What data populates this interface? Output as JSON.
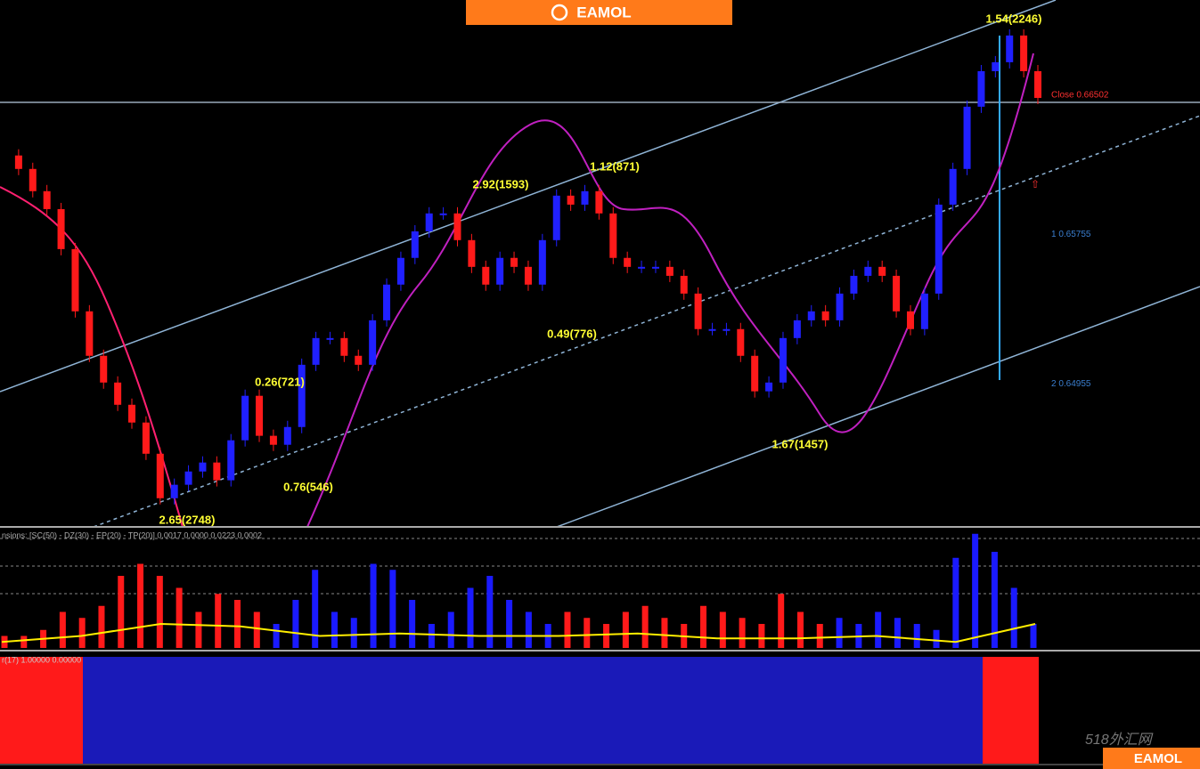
{
  "chart_data": {
    "type": "candlestick",
    "logo": "EAMOL",
    "values": [
      0.66178,
      0.66106,
      0.65987,
      0.65891,
      0.65677,
      0.65344,
      0.65106,
      0.64963,
      0.64844,
      0.64749,
      0.64582,
      0.64344,
      0.64416,
      0.64487,
      0.64535,
      0.6444,
      0.64654,
      0.64892,
      0.64678,
      0.6463,
      0.64725,
      0.65058,
      0.65201,
      0.65201,
      0.65106,
      0.65058,
      0.65296,
      0.65487,
      0.6563,
      0.65772,
      0.65868,
      0.65868,
      0.65725,
      0.65582,
      0.65487,
      0.6563,
      0.65582,
      0.65487,
      0.65725,
      0.65963,
      0.65915,
      0.65987,
      0.65868,
      0.6563,
      0.65582,
      0.65582,
      0.65582,
      0.65534,
      0.65439,
      0.65249,
      0.65249,
      0.65249,
      0.65106,
      0.64916,
      0.64963,
      0.65201,
      0.65296,
      0.65344,
      0.65296,
      0.65439,
      0.65534,
      0.65582,
      0.65534,
      0.65344,
      0.65249,
      0.65439,
      0.65915,
      0.66106,
      0.66439,
      0.66629,
      0.66677,
      0.6682,
      0.66629,
      0.66486
    ],
    "ylim": [
      0.642,
      0.6701
    ],
    "levels": [
      {
        "value": 0.66502,
        "label": "Close 0.66502"
      },
      {
        "value": 0.65755,
        "label": "1 0.65755"
      },
      {
        "value": 0.64955,
        "label": "2 0.64955"
      }
    ],
    "annotations": [
      "2.65(2748)",
      "0.26(721)",
      "0.76(546)",
      "2.92(1593)",
      "0.49(776)",
      "1.12(871)",
      "1.67(1457)",
      "1.54(2246)"
    ],
    "indicator": {
      "type": "bar",
      "title": "nsions: [SC(50) - DZ(30) - EP(20) - TP(20)] 0.0017 0.0000 0.0223 0.0002",
      "ylim": [
        0,
        1
      ],
      "values": [
        0.1,
        0.1,
        0.15,
        0.3,
        0.25,
        0.35,
        0.6,
        0.7,
        0.6,
        0.5,
        0.3,
        0.45,
        0.4,
        0.3,
        0.2,
        0.4,
        0.65,
        0.3,
        0.25,
        0.7,
        0.65,
        0.4,
        0.2,
        0.3,
        0.5,
        0.6,
        0.4,
        0.3,
        0.2,
        0.3,
        0.25,
        0.2,
        0.3,
        0.35,
        0.25,
        0.2,
        0.35,
        0.3,
        0.25,
        0.2,
        0.45,
        0.3,
        0.2,
        0.25,
        0.2,
        0.3,
        0.25,
        0.2,
        0.15,
        0.75,
        0.95,
        0.8,
        0.5,
        0.2
      ],
      "bar_colors": [
        "#ff1a1a",
        "#ff1a1a",
        "#ff1a1a",
        "#ff1a1a",
        "#ff1a1a",
        "#ff1a1a",
        "#ff1a1a",
        "#ff1a1a",
        "#ff1a1a",
        "#ff1a1a",
        "#ff1a1a",
        "#ff1a1a",
        "#ff1a1a",
        "#ff1a1a",
        "#1a1aff",
        "#1a1aff",
        "#1a1aff",
        "#1a1aff",
        "#1a1aff",
        "#1a1aff",
        "#1a1aff",
        "#1a1aff",
        "#1a1aff",
        "#1a1aff",
        "#1a1aff",
        "#1a1aff",
        "#1a1aff",
        "#1a1aff",
        "#1a1aff",
        "#ff1a1a",
        "#ff1a1a",
        "#ff1a1a",
        "#ff1a1a",
        "#ff1a1a",
        "#ff1a1a",
        "#ff1a1a",
        "#ff1a1a",
        "#ff1a1a",
        "#ff1a1a",
        "#ff1a1a",
        "#ff1a1a",
        "#ff1a1a",
        "#ff1a1a",
        "#1a1aff",
        "#1a1aff",
        "#1a1aff",
        "#1a1aff",
        "#1a1aff",
        "#1a1aff",
        "#1a1aff",
        "#1a1aff",
        "#1a1aff",
        "#1a1aff",
        "#1a1aff"
      ],
      "signal": [
        0.05,
        0.1,
        0.2,
        0.18,
        0.1,
        0.12,
        0.1,
        0.1,
        0.12,
        0.08,
        0.08,
        0.1,
        0.05,
        0.2
      ],
      "signal_color": "#ffee00"
    },
    "trend_title": "r(17) 1.00000 0.00000",
    "watermark": "518外汇网"
  }
}
